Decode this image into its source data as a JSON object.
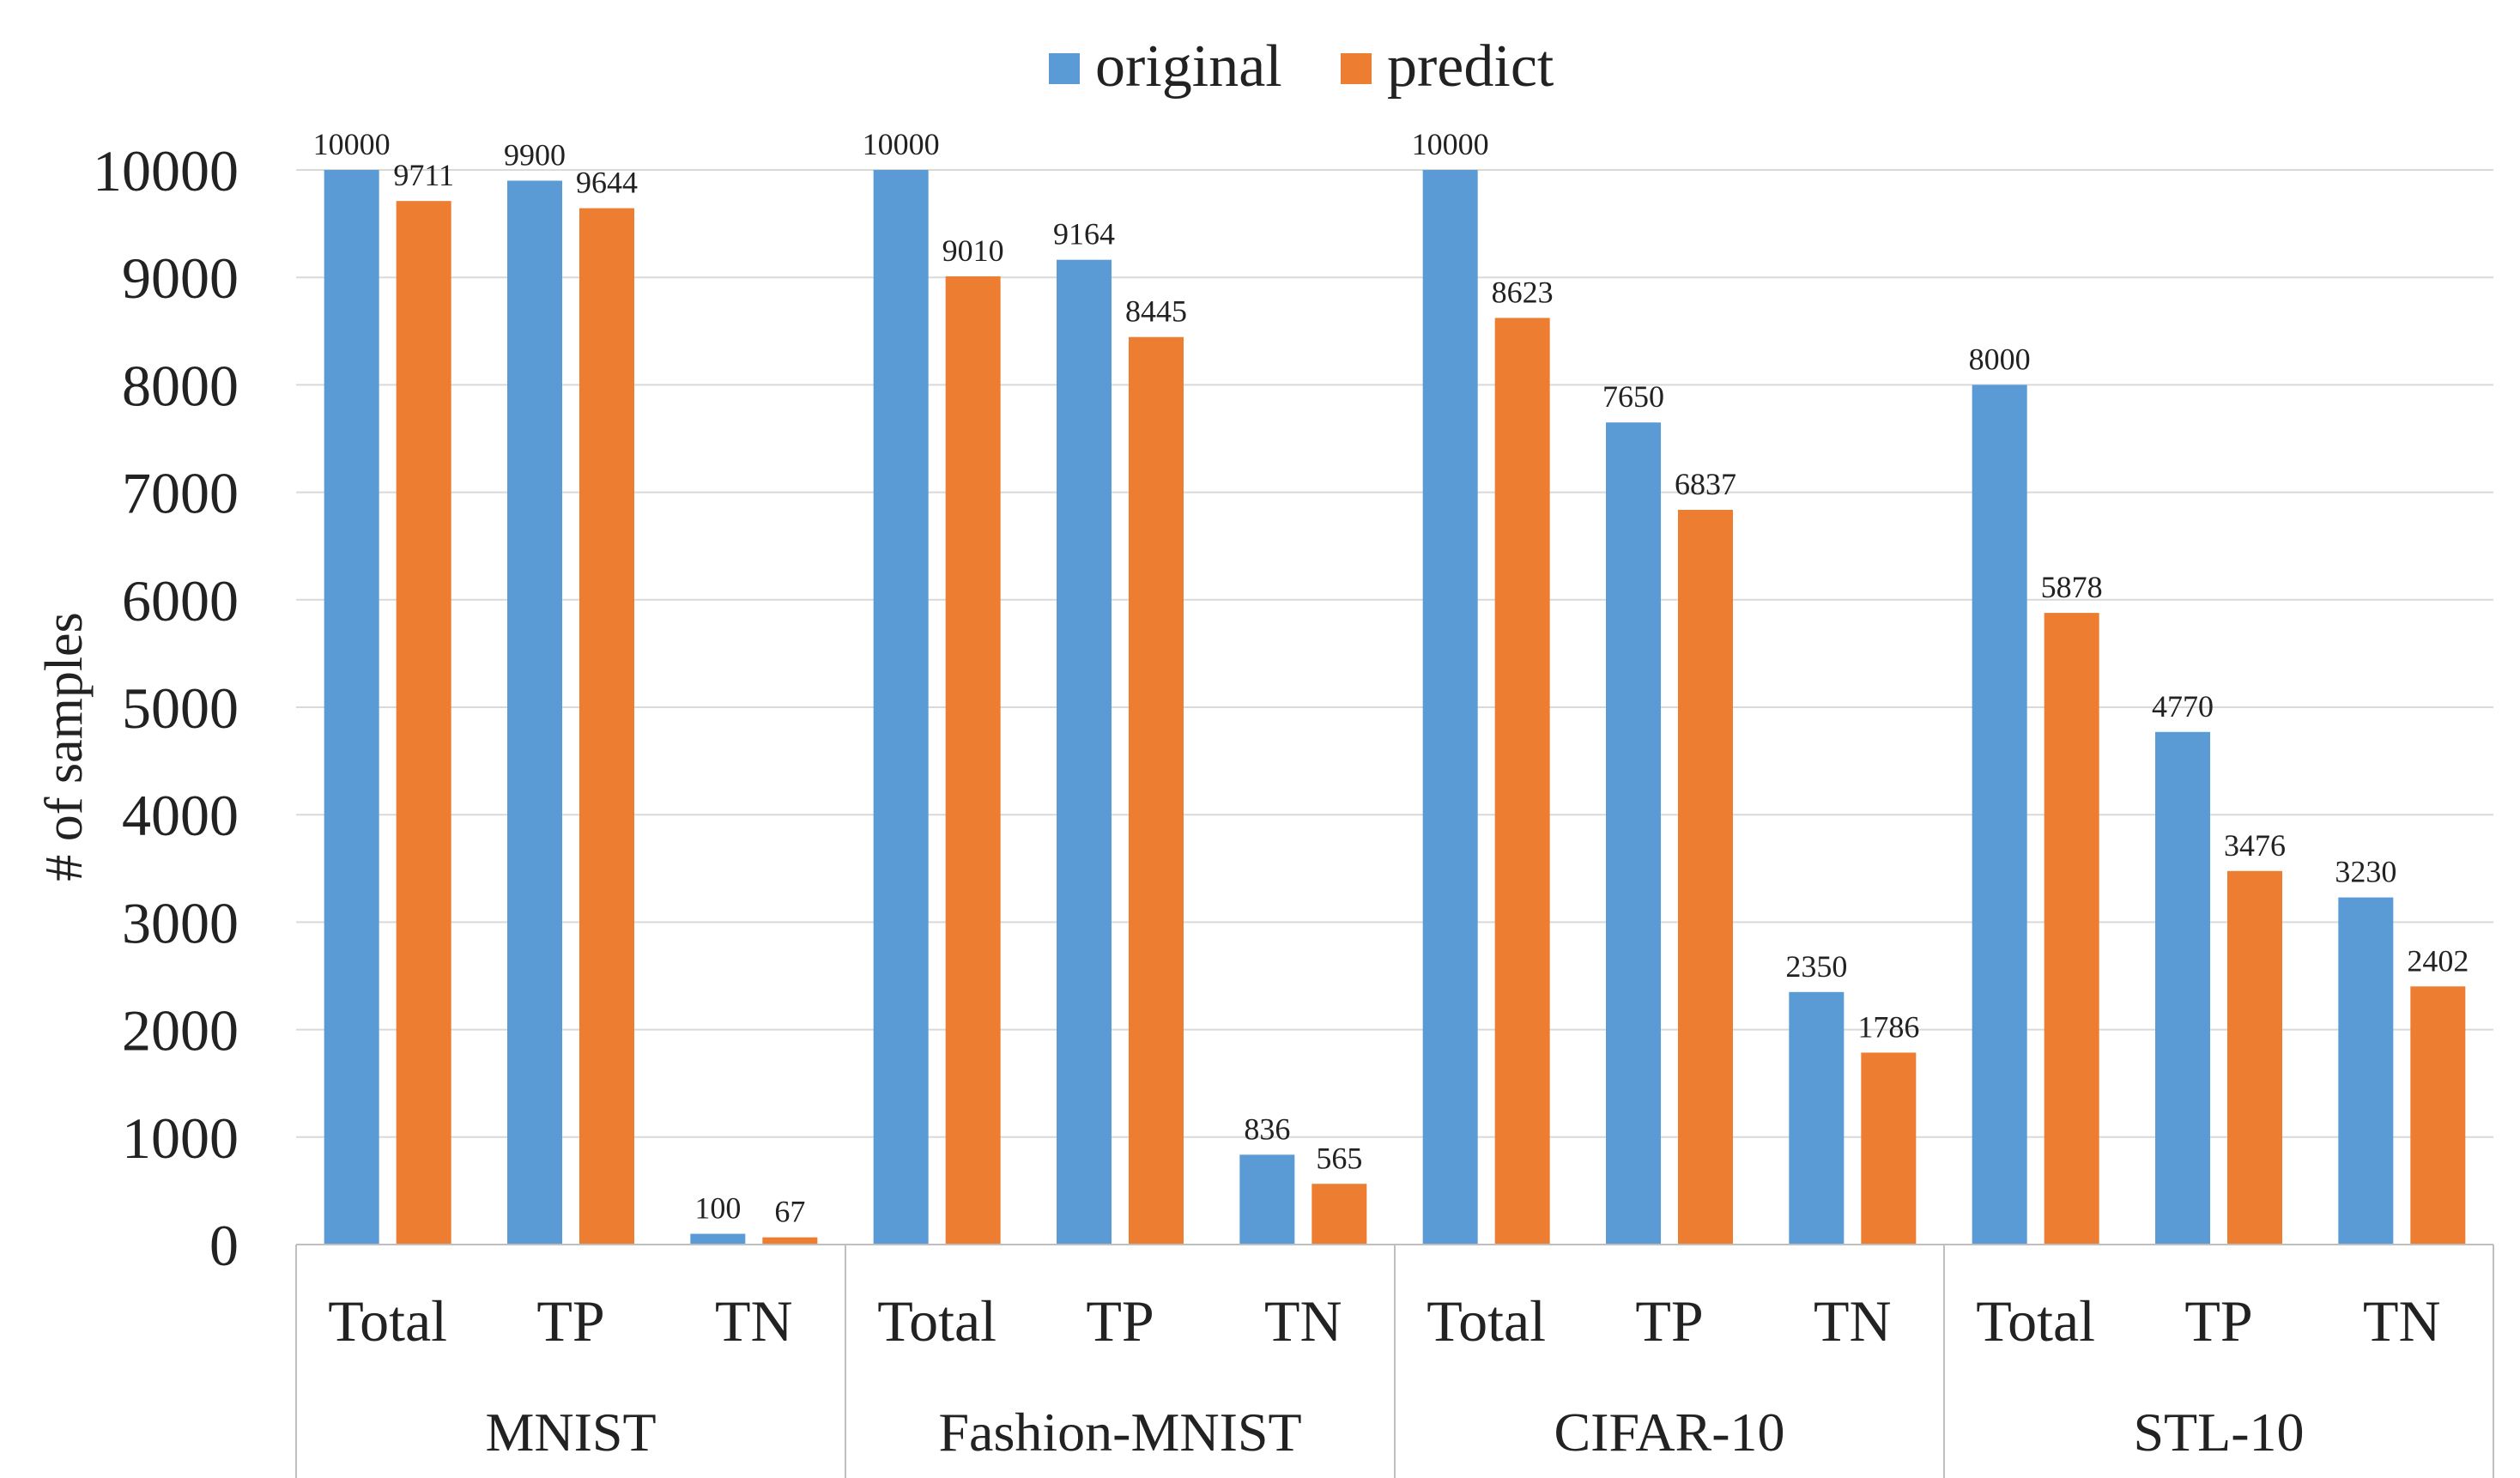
{
  "chart_data": {
    "type": "bar",
    "title": "",
    "xlabel": "",
    "ylabel": "# of samples",
    "ylim": [
      0,
      10000
    ],
    "yticks": [
      0,
      1000,
      2000,
      3000,
      4000,
      5000,
      6000,
      7000,
      8000,
      9000,
      10000
    ],
    "grid": true,
    "legend_position": "top-center",
    "groups": [
      {
        "name": "MNIST",
        "categories": [
          "Total",
          "TP",
          "TN"
        ]
      },
      {
        "name": "Fashion-MNIST",
        "categories": [
          "Total",
          "TP",
          "TN"
        ]
      },
      {
        "name": "CIFAR-10",
        "categories": [
          "Total",
          "TP",
          "TN"
        ]
      },
      {
        "name": "STL-10",
        "categories": [
          "Total",
          "TP",
          "TN"
        ]
      }
    ],
    "series": [
      {
        "name": "original",
        "color": "#5b9bd5",
        "values": [
          10000,
          9900,
          100,
          10000,
          9164,
          836,
          10000,
          7650,
          2350,
          8000,
          4770,
          3230
        ]
      },
      {
        "name": "predict",
        "color": "#ed7d31",
        "values": [
          9711,
          9644,
          67,
          9010,
          8445,
          565,
          8623,
          6837,
          1786,
          5878,
          3476,
          2402
        ]
      }
    ]
  }
}
